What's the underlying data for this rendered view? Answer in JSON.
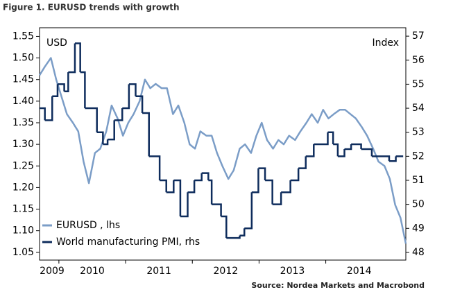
{
  "chart_data": {
    "type": "line",
    "title": "Figure 1. EURUSD trends with growth",
    "y_label": "USD",
    "y2_label": "Index",
    "source": "Source: Nordea Markets and Macrobond",
    "xlim": [
      2009.71,
      2015.2
    ],
    "xticks": [
      {
        "value": 2009,
        "label": "2009"
      },
      {
        "value": 2010,
        "label": "2010"
      },
      {
        "value": 2011,
        "label": "2011"
      },
      {
        "value": 2012,
        "label": "2012"
      },
      {
        "value": 2013,
        "label": "2013"
      },
      {
        "value": 2014,
        "label": "2014"
      }
    ],
    "ylim": [
      1.032,
      1.57
    ],
    "yticks": [
      1.05,
      {
        "value": 1.1,
        "label": "1.10"
      },
      1.15,
      {
        "value": 1.2,
        "label": "1.20"
      },
      1.25,
      {
        "value": 1.3,
        "label": "1.30"
      },
      1.35,
      {
        "value": 1.4,
        "label": "1.40"
      },
      1.45,
      {
        "value": 1.5,
        "label": "1.50"
      },
      1.55
    ],
    "y2lim": [
      47.68,
      57.35
    ],
    "y2ticks": [
      48,
      49,
      50,
      51,
      52,
      53,
      54,
      55,
      56,
      57
    ],
    "legend": "lower left",
    "series": [
      {
        "name": "EURUSD , lhs",
        "color": "#7b9dc7",
        "step": false,
        "x": [
          2009.71,
          2009.79,
          2009.88,
          2009.96,
          2010.04,
          2010.12,
          2010.21,
          2010.29,
          2010.37,
          2010.45,
          2010.54,
          2010.62,
          2010.71,
          2010.79,
          2010.88,
          2010.96,
          2011.04,
          2011.12,
          2011.21,
          2011.29,
          2011.37,
          2011.45,
          2011.54,
          2011.62,
          2011.71,
          2011.79,
          2011.88,
          2011.96,
          2012.04,
          2012.12,
          2012.21,
          2012.29,
          2012.37,
          2012.45,
          2012.54,
          2012.62,
          2012.71,
          2012.79,
          2012.88,
          2012.96,
          2013.04,
          2013.12,
          2013.21,
          2013.29,
          2013.37,
          2013.45,
          2013.54,
          2013.62,
          2013.71,
          2013.79,
          2013.88,
          2013.96,
          2014.04,
          2014.12,
          2014.21,
          2014.29,
          2014.37,
          2014.45,
          2014.54,
          2014.62,
          2014.71,
          2014.79,
          2014.88,
          2014.96,
          2015.04,
          2015.12,
          2015.2
        ],
        "values": [
          1.46,
          1.48,
          1.5,
          1.45,
          1.41,
          1.37,
          1.35,
          1.33,
          1.26,
          1.21,
          1.28,
          1.29,
          1.33,
          1.39,
          1.36,
          1.32,
          1.35,
          1.37,
          1.4,
          1.45,
          1.43,
          1.44,
          1.43,
          1.43,
          1.37,
          1.39,
          1.35,
          1.3,
          1.29,
          1.33,
          1.32,
          1.32,
          1.28,
          1.25,
          1.22,
          1.24,
          1.29,
          1.3,
          1.28,
          1.32,
          1.35,
          1.31,
          1.29,
          1.31,
          1.3,
          1.32,
          1.31,
          1.33,
          1.35,
          1.37,
          1.35,
          1.38,
          1.36,
          1.37,
          1.38,
          1.38,
          1.37,
          1.36,
          1.34,
          1.32,
          1.29,
          1.26,
          1.25,
          1.22,
          1.16,
          1.13,
          1.07
        ]
      },
      {
        "name": "World manufacturing PMI, rhs",
        "color": "#0e2c5c",
        "axis": "y2",
        "step": true,
        "x": [
          2009.71,
          2009.79,
          2009.9,
          2009.98,
          2010.08,
          2010.14,
          2010.24,
          2010.32,
          2010.39,
          2010.57,
          2010.66,
          2010.73,
          2010.83,
          2010.95,
          2011.05,
          2011.15,
          2011.25,
          2011.35,
          2011.51,
          2011.61,
          2011.72,
          2011.82,
          2011.93,
          2012.03,
          2012.14,
          2012.24,
          2012.29,
          2012.43,
          2012.51,
          2012.71,
          2012.78,
          2012.89,
          2012.99,
          2013.09,
          2013.2,
          2013.33,
          2013.47,
          2013.59,
          2013.7,
          2013.82,
          2014.03,
          2014.11,
          2014.18,
          2014.28,
          2014.38,
          2014.53,
          2014.69,
          2014.95,
          2015.05,
          2015.16
        ],
        "values": [
          54,
          53.5,
          54.5,
          55,
          54.7,
          55.5,
          56.7,
          55.5,
          54,
          53,
          52.5,
          52.7,
          53.5,
          54,
          55,
          54.5,
          53.8,
          52,
          51,
          50.5,
          51,
          49.5,
          50.5,
          51,
          51.3,
          51,
          50,
          49.5,
          48.6,
          48.7,
          49,
          50.5,
          51.5,
          51,
          50,
          50.5,
          51,
          51.5,
          52,
          52.5,
          53,
          52.5,
          52,
          52.3,
          52.5,
          52.3,
          52,
          51.8,
          52,
          52
        ]
      }
    ]
  }
}
